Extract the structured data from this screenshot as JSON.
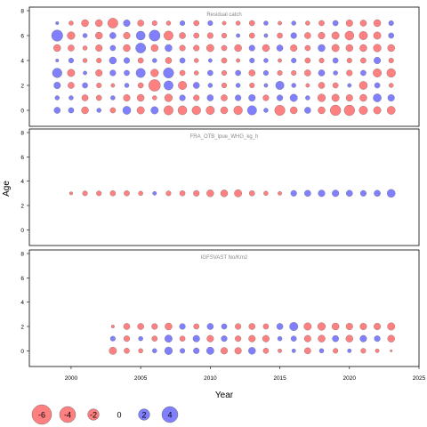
{
  "chart_data": {
    "type": "scatter",
    "xlabel": "Year",
    "ylabel": "Age",
    "xlim": [
      1997,
      2025
    ],
    "ylim": [
      -1,
      8
    ],
    "x_ticks": [
      2000,
      2005,
      2010,
      2015,
      2020,
      2025
    ],
    "y_ticks": [
      0,
      2,
      4,
      6,
      8
    ],
    "colors": {
      "positive": "#6a6aff",
      "negative": "#ff6a6a"
    },
    "max_abs_residual": 4.5,
    "legend": {
      "position": "bottom-left",
      "items": [
        {
          "label": "-6",
          "value": -6
        },
        {
          "label": "-4",
          "value": -4
        },
        {
          "label": "-2",
          "value": -2
        },
        {
          "label": "0",
          "value": 0
        },
        {
          "label": "2",
          "value": 2
        },
        {
          "label": "4",
          "value": 4
        }
      ]
    },
    "panels": [
      {
        "title": "Residual catch",
        "years": [
          1999,
          2000,
          2001,
          2002,
          2003,
          2004,
          2005,
          2006,
          2007,
          2008,
          2009,
          2010,
          2011,
          2012,
          2013,
          2014,
          2015,
          2016,
          2017,
          2018,
          2019,
          2020,
          2021,
          2022,
          2023
        ],
        "ages": [
          0,
          1,
          2,
          3,
          4,
          5,
          6,
          7
        ],
        "residuals": [
          [
            0.8,
            0.6,
            -1.0,
            0.4,
            -0.6,
            1.3,
            -1.1,
            1.1,
            -1.7,
            -1.6,
            -1.5,
            -1.4,
            -1.0,
            -1.5,
            1.7,
            0.4,
            -2.1,
            -1.0,
            0.8,
            -1.0,
            -2.2,
            -2.2,
            -1.4,
            -1.1,
            -1.3
          ],
          [
            0.4,
            0.4,
            -0.8,
            -0.6,
            0.4,
            -0.9,
            -1.0,
            -0.4,
            -1.2,
            0.7,
            -0.7,
            0.8,
            -0.8,
            0.7,
            0.9,
            -0.7,
            0.7,
            1.1,
            0.4,
            -1.2,
            -1.1,
            -0.9,
            -1.0,
            1.3,
            0.9
          ],
          [
            0.9,
            -0.8,
            0.6,
            -0.5,
            -0.3,
            0.4,
            -0.6,
            -2.7,
            1.7,
            -1.4,
            0.8,
            0.4,
            -0.5,
            0.4,
            -0.5,
            0.3,
            1.4,
            0.4,
            -0.3,
            -0.8,
            -0.6,
            0.3,
            -1.3,
            0.6,
            -0.4
          ],
          [
            1.8,
            -1.1,
            0.3,
            -0.9,
            0.7,
            0.6,
            1.7,
            -1.2,
            2.1,
            -0.6,
            -0.4,
            0.6,
            -0.5,
            0.6,
            -0.8,
            0.5,
            -0.5,
            -0.5,
            -0.8,
            0.8,
            0.4,
            -0.7,
            0.6,
            -1.4,
            -1.5
          ],
          [
            0.2,
            0.5,
            -0.4,
            -0.5,
            1.0,
            0.7,
            -0.6,
            0.4,
            -0.8,
            0.6,
            -0.4,
            0.3,
            -0.6,
            -0.3,
            0.5,
            0.4,
            -0.3,
            0.5,
            -0.6,
            -0.5,
            0.6,
            -0.5,
            -0.6,
            0.9,
            -0.5
          ],
          [
            -1.0,
            -0.8,
            -0.4,
            -0.9,
            0.6,
            -1.0,
            2.0,
            -1.0,
            1.0,
            -0.7,
            -0.7,
            -1.1,
            -0.6,
            -1.0,
            0.7,
            -1.0,
            0.8,
            -0.9,
            -0.6,
            1.0,
            -1.1,
            -1.0,
            -1.0,
            -1.2,
            -1.0
          ],
          [
            2.5,
            -1.2,
            0.4,
            -1.0,
            0.8,
            -0.9,
            1.6,
            2.4,
            -1.7,
            -0.8,
            -0.6,
            -0.7,
            -0.5,
            0.3,
            -0.6,
            0.3,
            -0.6,
            0.7,
            -0.8,
            -0.9,
            -1.1,
            -1.6,
            -1.4,
            -1.1,
            0.6
          ],
          [
            0.2,
            -0.4,
            -1.0,
            -1.0,
            -2.0,
            0.9,
            -0.8,
            -0.5,
            -0.4,
            0.5,
            -0.6,
            0.5,
            -0.3,
            -0.4,
            -0.6,
            0.4,
            -0.3,
            0.4,
            -0.4,
            -0.6,
            0.6,
            -0.9,
            -0.8,
            -1.0,
            0.5
          ]
        ]
      },
      {
        "title": "FRA_OTB_lpue_WHG_kg_h",
        "years": [
          2000,
          2001,
          2002,
          2003,
          2004,
          2005,
          2006,
          2007,
          2008,
          2009,
          2010,
          2011,
          2012,
          2013,
          2014,
          2015,
          2016,
          2017,
          2018,
          2019,
          2020,
          2021,
          2022,
          2023
        ],
        "ages": [
          3
        ],
        "residuals": [
          [
            -0.2,
            -0.5,
            -0.5,
            -0.6,
            -0.6,
            -0.4,
            0.3,
            -0.5,
            -0.6,
            -0.7,
            -1.0,
            -1.0,
            -1.1,
            -0.6,
            -0.4,
            -0.3,
            0.7,
            0.8,
            0.9,
            0.9,
            0.8,
            0.7,
            0.8,
            1.3
          ]
        ]
      },
      {
        "title": "IGFSVAST No/Km2",
        "years": [
          2003,
          2004,
          2005,
          2006,
          2007,
          2008,
          2009,
          2010,
          2011,
          2012,
          2013,
          2014,
          2015,
          2016,
          2017,
          2018,
          2019,
          2020,
          2021,
          2022,
          2023
        ],
        "ages": [
          0,
          1,
          2
        ],
        "residuals": [
          [
            -1.1,
            -0.6,
            -0.4,
            0.4,
            1.2,
            0.5,
            0.7,
            1.1,
            -0.9,
            -0.9,
            1.0,
            -0.6,
            -0.3,
            0.3,
            -0.8,
            0.4,
            -0.5,
            0.3,
            -0.5,
            -0.3,
            -0.1
          ],
          [
            0.5,
            -0.7,
            0.4,
            -0.6,
            1.1,
            -0.6,
            0.9,
            -0.9,
            0.7,
            -0.7,
            -0.9,
            -0.9,
            0.4,
            0.6,
            -0.9,
            -1.0,
            0.8,
            -1.0,
            0.9,
            0.7,
            -1.0
          ],
          [
            -0.2,
            -0.8,
            -0.8,
            -0.7,
            -1.0,
            0.7,
            -0.6,
            0.8,
            0.6,
            -0.7,
            -0.8,
            -0.6,
            0.8,
            1.4,
            -1.1,
            -1.2,
            -1.0,
            -0.9,
            -0.9,
            -0.9,
            -1.1
          ]
        ]
      }
    ]
  }
}
